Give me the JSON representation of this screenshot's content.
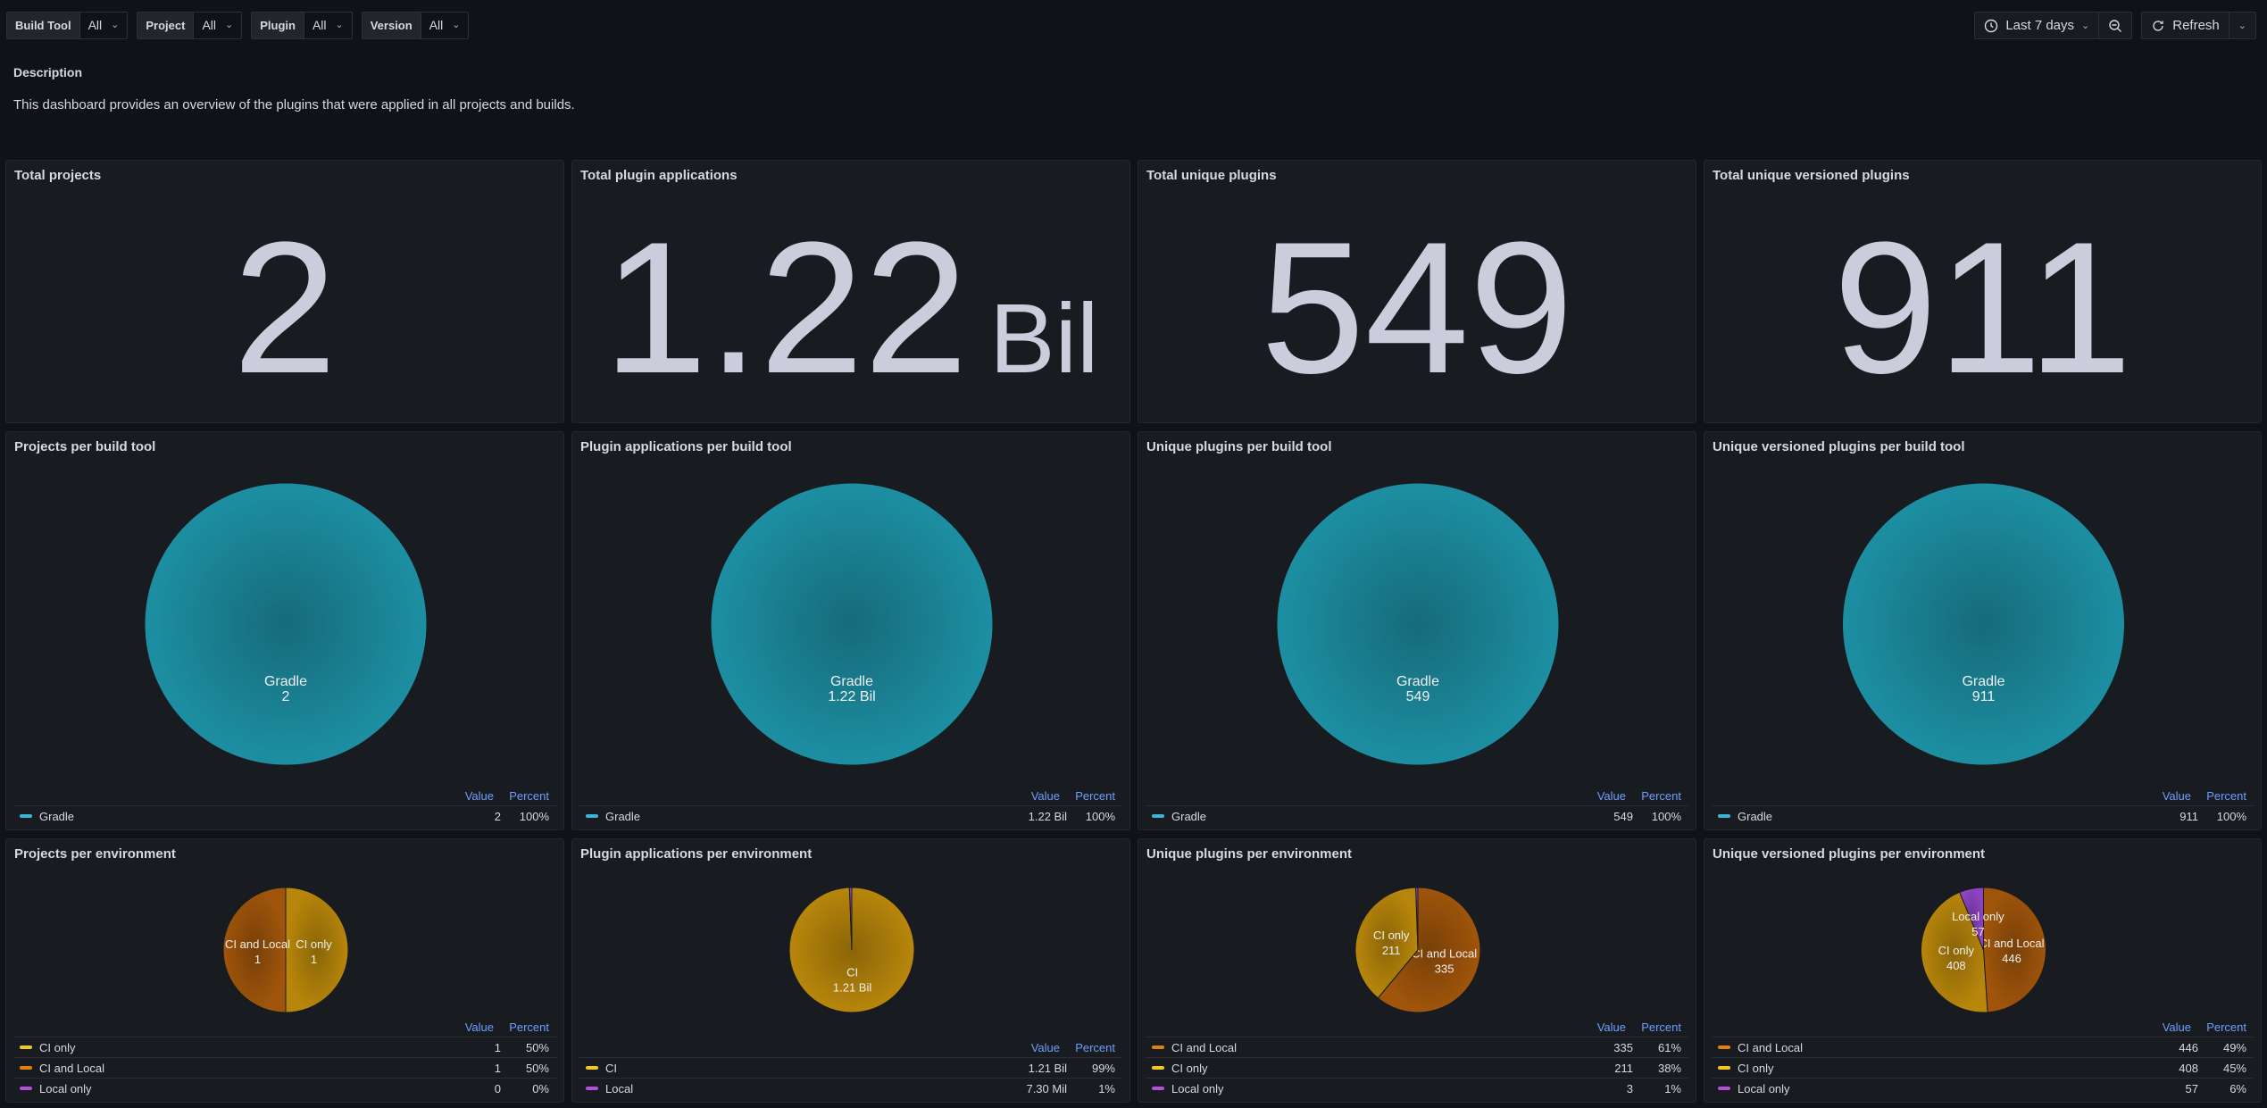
{
  "filters": [
    {
      "label": "Build Tool",
      "value": "All"
    },
    {
      "label": "Project",
      "value": "All"
    },
    {
      "label": "Plugin",
      "value": "All"
    },
    {
      "label": "Version",
      "value": "All"
    }
  ],
  "time_range": "Last 7 days",
  "refresh_label": "Refresh",
  "description": {
    "title": "Description",
    "text": "This dashboard provides an overview of the plugins that were applied in all projects and builds."
  },
  "stats": [
    {
      "title": "Total projects",
      "value": "2",
      "unit": ""
    },
    {
      "title": "Total plugin applications",
      "value": "1.22",
      "unit": "Bil"
    },
    {
      "title": "Total unique plugins",
      "value": "549",
      "unit": ""
    },
    {
      "title": "Total unique versioned plugins",
      "value": "911",
      "unit": ""
    }
  ],
  "legend_headers": {
    "value": "Value",
    "percent": "Percent"
  },
  "chart_data": [
    {
      "type": "pie",
      "title": "Projects per build tool",
      "slices": [
        {
          "label": "Gradle",
          "value": 2,
          "display": "2",
          "percent": "100%",
          "color": "#1d8fa3"
        }
      ]
    },
    {
      "type": "pie",
      "title": "Plugin applications per build tool",
      "slices": [
        {
          "label": "Gradle",
          "value": 1.22,
          "display": "1.22 Bil",
          "percent": "100%",
          "color": "#1d8fa3"
        }
      ]
    },
    {
      "type": "pie",
      "title": "Unique plugins per build tool",
      "slices": [
        {
          "label": "Gradle",
          "value": 549,
          "display": "549",
          "percent": "100%",
          "color": "#1d8fa3"
        }
      ]
    },
    {
      "type": "pie",
      "title": "Unique versioned plugins per build tool",
      "slices": [
        {
          "label": "Gradle",
          "value": 911,
          "display": "911",
          "percent": "100%",
          "color": "#1d8fa3"
        }
      ]
    },
    {
      "type": "pie",
      "title": "Projects per environment",
      "slices": [
        {
          "label": "CI only",
          "value": 1,
          "display": "1",
          "percent": "50%",
          "color": "#b8860b"
        },
        {
          "label": "CI and Local",
          "value": 1,
          "display": "1",
          "percent": "50%",
          "color": "#a0550b"
        },
        {
          "label": "Local only",
          "value": 0,
          "display": "0",
          "percent": "0%",
          "color": "#8e44c4"
        }
      ]
    },
    {
      "type": "pie",
      "title": "Plugin applications per environment",
      "slices": [
        {
          "label": "CI",
          "value": 1210,
          "display": "1.21 Bil",
          "percent": "99%",
          "color": "#b8860b"
        },
        {
          "label": "Local",
          "value": 7.3,
          "display": "7.30 Mil",
          "percent": "1%",
          "color": "#8e44c4"
        }
      ]
    },
    {
      "type": "pie",
      "title": "Unique plugins per environment",
      "slices": [
        {
          "label": "CI and Local",
          "value": 335,
          "display": "335",
          "percent": "61%",
          "color": "#a0550b"
        },
        {
          "label": "CI only",
          "value": 211,
          "display": "211",
          "percent": "38%",
          "color": "#b8860b"
        },
        {
          "label": "Local only",
          "value": 3,
          "display": "3",
          "percent": "1%",
          "color": "#8e44c4"
        }
      ]
    },
    {
      "type": "pie",
      "title": "Unique versioned plugins per environment",
      "slices": [
        {
          "label": "CI and Local",
          "value": 446,
          "display": "446",
          "percent": "49%",
          "color": "#a0550b"
        },
        {
          "label": "CI only",
          "value": 408,
          "display": "408",
          "percent": "45%",
          "color": "#b8860b"
        },
        {
          "label": "Local only",
          "value": 57,
          "display": "57",
          "percent": "6%",
          "color": "#8e44c4"
        }
      ]
    }
  ]
}
